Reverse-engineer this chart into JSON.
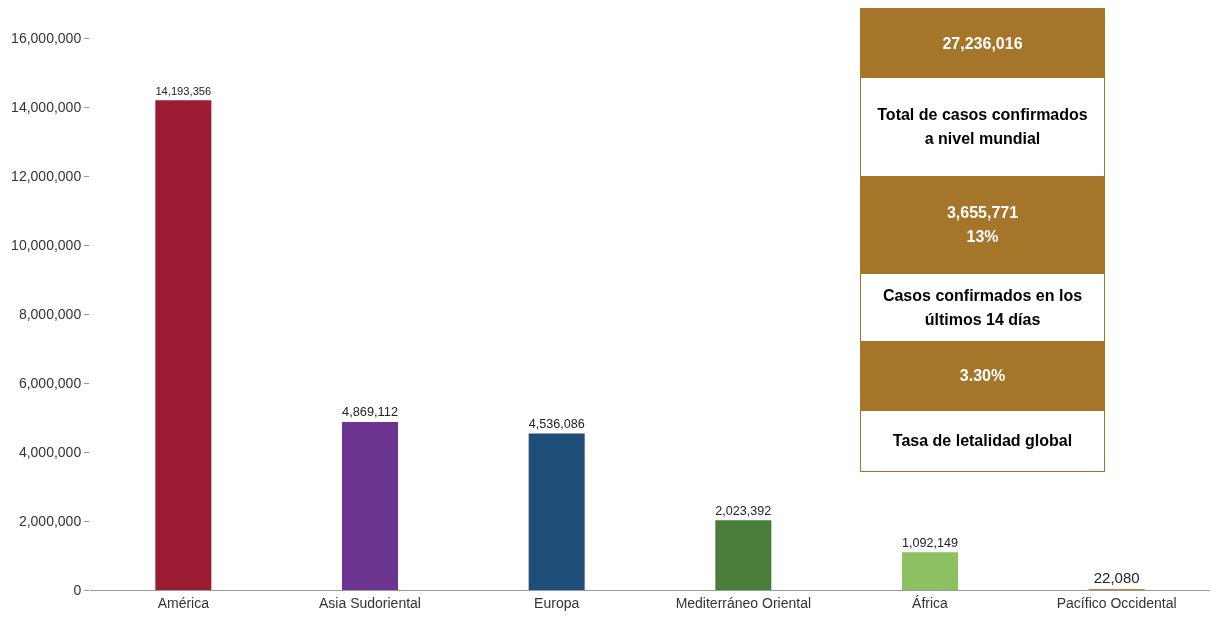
{
  "chart_data": {
    "type": "bar",
    "categories": [
      "América",
      "Asia Sudoriental",
      "Europa",
      "Mediterráneo Oriental",
      "África",
      "Pacífico Occidental"
    ],
    "values": [
      14193356,
      4869112,
      4536086,
      2023392,
      1092149,
      22080
    ],
    "value_labels": [
      "14,193,356",
      "4,869,112",
      "4,536,086",
      "2,023,392",
      "1,092,149",
      "22,080"
    ],
    "colors": [
      "#9b1b35",
      "#6b3590",
      "#1f4e79",
      "#4a7c3a",
      "#8dc060",
      "#c08a2a"
    ],
    "ylim": [
      0,
      16000000
    ],
    "yticks": [
      {
        "value": 0,
        "label": "0"
      },
      {
        "value": 2000000,
        "label": "2,000,000"
      },
      {
        "value": 4000000,
        "label": "4,000,000"
      },
      {
        "value": 6000000,
        "label": "6,000,000"
      },
      {
        "value": 8000000,
        "label": "8,000,000"
      },
      {
        "value": 10000000,
        "label": "10,000,000"
      },
      {
        "value": 12000000,
        "label": "12,000,000"
      },
      {
        "value": 14000000,
        "label": "14,000,000"
      },
      {
        "value": 16000000,
        "label": "16,000,000"
      }
    ],
    "grid": false,
    "annotations": [
      "27,236,016",
      "Total de casos confirmados\na nivel mundial",
      "3,655,771\n13%",
      "Casos confirmados en los\núltimos 14 días",
      "3.30%",
      "Tasa de letalidad global"
    ]
  }
}
